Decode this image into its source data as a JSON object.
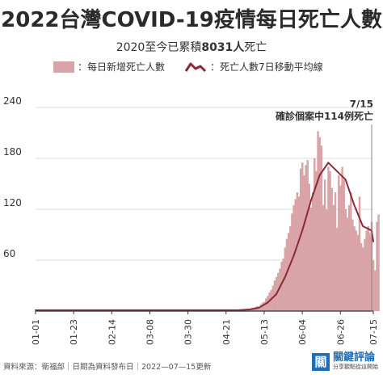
{
  "title": "2022台灣COVID-19疫情每日死亡人數",
  "subtitle_prefix": "2020至今已累積",
  "subtitle_number": "8031人",
  "subtitle_suffix": "死亡",
  "legend": {
    "bar_label": "：每日新增死亡人數",
    "line_label": "：死亡人數7日移動平均線"
  },
  "annotation": {
    "date": "7/15",
    "text": "確診個案中114例死亡"
  },
  "footer": "資料來源：衛福部｜日期為資料發布日｜2022—07—15更新",
  "brand": {
    "name": "關鍵評論",
    "slogan": "分享觀點從這開始",
    "logo_glyph": "關"
  },
  "colors": {
    "bar": "#d9a4a8",
    "line": "#8b2a35",
    "grid": "#dddddd",
    "axis": "#333333",
    "annotation_line": "#888888"
  },
  "chart_data": {
    "type": "bar",
    "title": "2022台灣COVID-19疫情每日死亡人數",
    "xlabel": "",
    "ylabel": "",
    "ylim": [
      0,
      260
    ],
    "y_ticks": [
      60,
      120,
      180,
      240
    ],
    "grid": true,
    "legend_position": "top",
    "x_tick_labels": [
      "01-01",
      "01-23",
      "02-14",
      "03-08",
      "03-30",
      "04-21",
      "05-13",
      "06-04",
      "06-26",
      "07-15"
    ],
    "x_tick_days": [
      1,
      23,
      45,
      67,
      89,
      111,
      133,
      155,
      177,
      196
    ],
    "series": [
      {
        "name": "每日新增死亡人數",
        "type": "bar",
        "x_start_day": 120,
        "values": [
          1,
          1,
          2,
          1,
          3,
          2,
          4,
          3,
          5,
          6,
          5,
          8,
          10,
          11,
          15,
          18,
          22,
          25,
          30,
          36,
          40,
          45,
          50,
          58,
          62,
          75,
          85,
          92,
          100,
          115,
          125,
          132,
          140,
          135,
          168,
          175,
          160,
          172,
          178,
          150,
          122,
          140,
          180,
          165,
          212,
          205,
          195,
          125,
          155,
          120,
          170,
          165,
          145,
          125,
          140,
          98,
          160,
          148,
          170,
          155,
          120,
          110,
          125,
          140,
          108,
          100,
          95,
          90,
          135,
          80,
          75,
          85,
          95,
          100,
          92,
          105,
          60,
          48,
          105,
          114
        ]
      },
      {
        "name": "死亡人數7日移動平均線",
        "type": "line",
        "x": [
          1,
          100,
          110,
          118,
          125,
          130,
          135,
          140,
          145,
          150,
          155,
          160,
          165,
          170,
          175,
          180,
          185,
          190,
          195,
          196
        ],
        "values": [
          1,
          1,
          1,
          1,
          2,
          4,
          10,
          20,
          40,
          65,
          95,
          130,
          160,
          175,
          165,
          155,
          125,
          100,
          95,
          82
        ]
      }
    ]
  }
}
